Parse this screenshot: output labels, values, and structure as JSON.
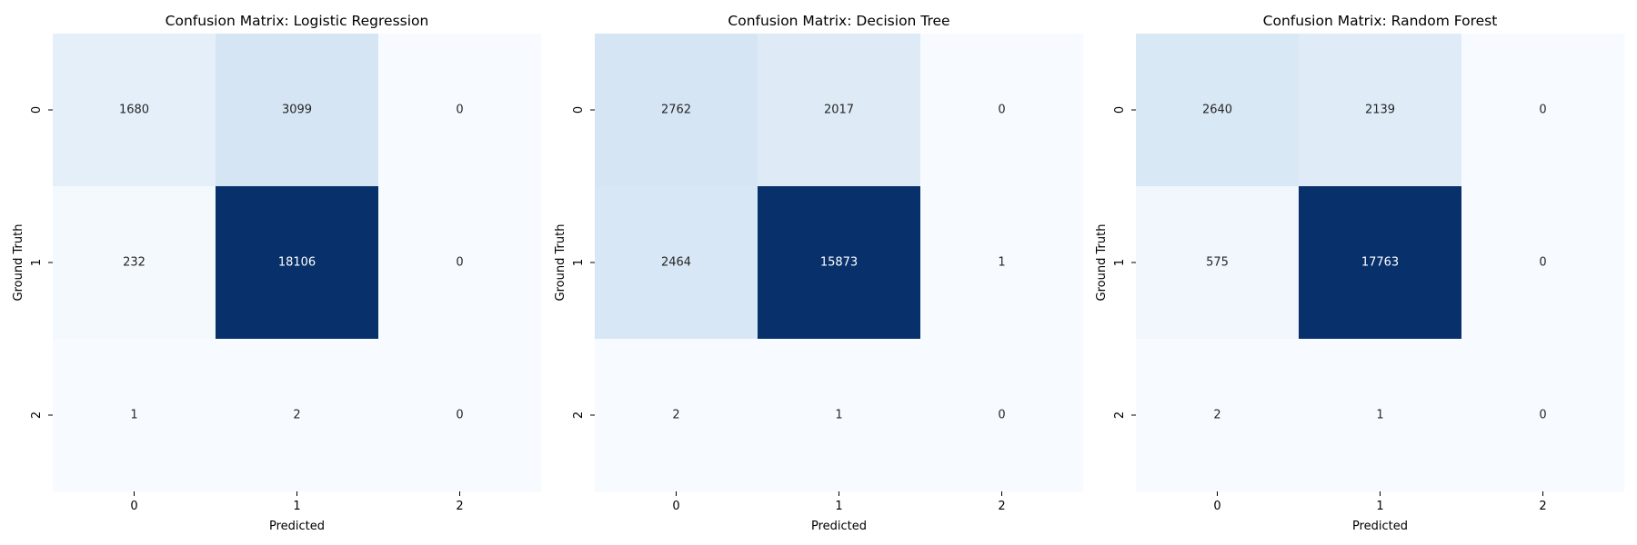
{
  "chart_data": [
    {
      "type": "heatmap",
      "title": "Confusion Matrix: Logistic Regression",
      "xlabel": "Predicted",
      "ylabel": "Ground Truth",
      "x_categories": [
        "0",
        "1",
        "2"
      ],
      "y_categories": [
        "0",
        "1",
        "2"
      ],
      "values": [
        [
          1680,
          3099,
          0
        ],
        [
          232,
          18106,
          0
        ],
        [
          1,
          2,
          0
        ]
      ],
      "colormap": "Blues",
      "colorbar": false,
      "grid": false
    },
    {
      "type": "heatmap",
      "title": "Confusion Matrix: Decision Tree",
      "xlabel": "Predicted",
      "ylabel": "Ground Truth",
      "x_categories": [
        "0",
        "1",
        "2"
      ],
      "y_categories": [
        "0",
        "1",
        "2"
      ],
      "values": [
        [
          2762,
          2017,
          0
        ],
        [
          2464,
          15873,
          1
        ],
        [
          2,
          1,
          0
        ]
      ],
      "colormap": "Blues",
      "colorbar": false,
      "grid": false
    },
    {
      "type": "heatmap",
      "title": "Confusion Matrix: Random Forest",
      "xlabel": "Predicted",
      "ylabel": "Ground Truth",
      "x_categories": [
        "0",
        "1",
        "2"
      ],
      "y_categories": [
        "0",
        "1",
        "2"
      ],
      "values": [
        [
          2640,
          2139,
          0
        ],
        [
          575,
          17763,
          0
        ],
        [
          2,
          1,
          0
        ]
      ],
      "colormap": "Blues",
      "colorbar": false,
      "grid": false
    }
  ]
}
